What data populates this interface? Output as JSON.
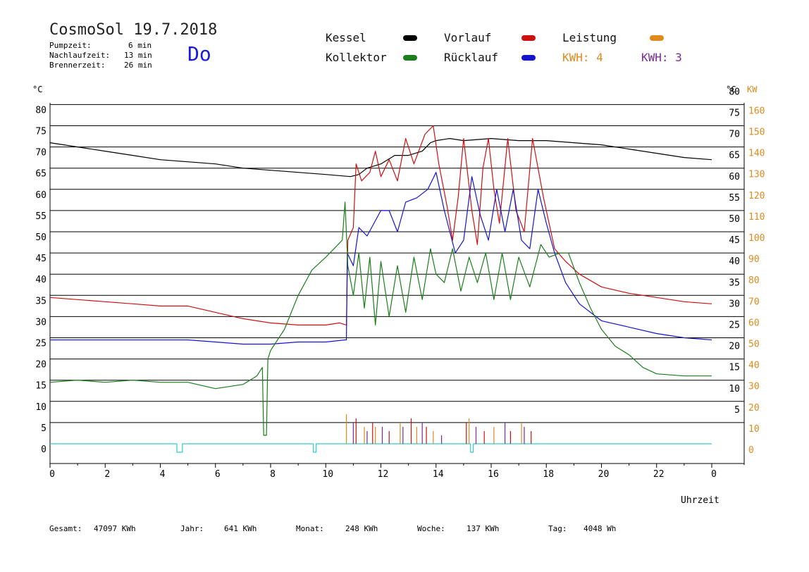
{
  "header": {
    "title": "CosmoSol 19.7.2018",
    "pump_label": "Pumpzeit:",
    "pump_value": "6 min",
    "after_label": "Nachlaufzeit:",
    "after_value": "13 min",
    "burner_label": "Brennerzeit:",
    "burner_value": "26 min",
    "day": "Do"
  },
  "legend": {
    "kessel": "Kessel",
    "vorlauf": "Vorlauf",
    "leistung": "Leistung",
    "kollektor": "Kollektor",
    "ruecklauf": "Rücklauf",
    "kwh_orange": "KWH: 4",
    "kwh_purple": "KWH: 3"
  },
  "colors": {
    "kessel": "#000000",
    "vorlauf": "#cc1111",
    "leistung": "#e08a1c",
    "kollektor": "#1a7f1a",
    "ruecklauf": "#1414cc",
    "pump": "#33cccc",
    "purple": "#7a2a9a"
  },
  "axes": {
    "left_unit": "°C",
    "right_unit": "°C",
    "right_unit2": "KW",
    "xlabel": "Uhrzeit"
  },
  "footer": {
    "total_label": "Gesamt:",
    "total_value": "47097 KWh",
    "year_label": "Jahr:",
    "year_value": "641 KWh",
    "month_label": "Monat:",
    "month_value": "248 KWh",
    "week_label": "Woche:",
    "week_value": "137 KWh",
    "day_label": "Tag:",
    "day_value": "4048 Wh"
  },
  "chart_data": {
    "type": "line",
    "title": "CosmoSol 19.7.2018",
    "xlabel": "Uhrzeit",
    "xlim": [
      0,
      24
    ],
    "ylim": [
      -5,
      82
    ],
    "x_ticks": [
      "0",
      "2",
      "4",
      "6",
      "8",
      "10",
      "12",
      "14",
      "16",
      "18",
      "20",
      "22",
      "0"
    ],
    "y_ticks_left": [
      "0",
      "5",
      "10",
      "15",
      "20",
      "25",
      "30",
      "35",
      "40",
      "45",
      "50",
      "55",
      "60",
      "65",
      "70",
      "75",
      "80"
    ],
    "y_ticks_right_c": [
      "5",
      "10",
      "15",
      "20",
      "25",
      "30",
      "35",
      "40",
      "45",
      "50",
      "55",
      "60",
      "65",
      "70",
      "75",
      "80"
    ],
    "y_ticks_right_kw": [
      "0",
      "10",
      "20",
      "30",
      "40",
      "50",
      "60",
      "70",
      "80",
      "90",
      "100",
      "110",
      "120",
      "130",
      "140",
      "150",
      "160"
    ],
    "grid": true,
    "series": [
      {
        "name": "Kessel",
        "color": "#000000",
        "points": [
          [
            0,
            71
          ],
          [
            1,
            70
          ],
          [
            2,
            69
          ],
          [
            3,
            68
          ],
          [
            4,
            67
          ],
          [
            5,
            66.5
          ],
          [
            6,
            66
          ],
          [
            7,
            65
          ],
          [
            8,
            64.5
          ],
          [
            9,
            64
          ],
          [
            10,
            63.5
          ],
          [
            10.9,
            63
          ],
          [
            11.2,
            63.5
          ],
          [
            11.5,
            65
          ],
          [
            12,
            66
          ],
          [
            12.5,
            68
          ],
          [
            13,
            68
          ],
          [
            13.5,
            69
          ],
          [
            13.8,
            71
          ],
          [
            14,
            71.5
          ],
          [
            14.5,
            72
          ],
          [
            15,
            71.5
          ],
          [
            16,
            72
          ],
          [
            17,
            71.5
          ],
          [
            18,
            71.5
          ],
          [
            19,
            71
          ],
          [
            20,
            70.5
          ],
          [
            21,
            69.5
          ],
          [
            22,
            68.5
          ],
          [
            23,
            67.5
          ],
          [
            24,
            67
          ]
        ]
      },
      {
        "name": "Vorlauf",
        "color": "#cc1111",
        "points": [
          [
            0,
            34.5
          ],
          [
            1,
            34
          ],
          [
            2,
            33.5
          ],
          [
            3,
            33
          ],
          [
            4,
            32.5
          ],
          [
            5,
            32.5
          ],
          [
            6,
            31
          ],
          [
            7,
            29.5
          ],
          [
            8,
            28.5
          ],
          [
            9,
            28
          ],
          [
            9.5,
            28
          ],
          [
            10,
            28
          ],
          [
            10.5,
            28.5
          ],
          [
            10.75,
            28
          ],
          [
            10.8,
            48
          ],
          [
            11,
            51
          ],
          [
            11.1,
            66
          ],
          [
            11.3,
            62
          ],
          [
            11.6,
            64
          ],
          [
            11.8,
            69
          ],
          [
            12,
            63
          ],
          [
            12.3,
            67
          ],
          [
            12.6,
            62
          ],
          [
            12.9,
            72
          ],
          [
            13.2,
            66
          ],
          [
            13.6,
            73
          ],
          [
            13.9,
            75
          ],
          [
            14.1,
            66
          ],
          [
            14.4,
            56
          ],
          [
            14.6,
            48
          ],
          [
            14.8,
            58
          ],
          [
            15,
            72
          ],
          [
            15.3,
            55
          ],
          [
            15.5,
            47
          ],
          [
            15.7,
            65
          ],
          [
            15.9,
            72
          ],
          [
            16.1,
            60
          ],
          [
            16.3,
            52
          ],
          [
            16.6,
            72
          ],
          [
            16.9,
            55
          ],
          [
            17.2,
            50
          ],
          [
            17.5,
            72
          ],
          [
            17.9,
            58
          ],
          [
            18.3,
            46
          ],
          [
            18.7,
            43
          ],
          [
            19.2,
            40
          ],
          [
            20,
            37
          ],
          [
            21,
            35.5
          ],
          [
            22,
            34.5
          ],
          [
            23,
            33.5
          ],
          [
            24,
            33
          ]
        ]
      },
      {
        "name": "Rücklauf",
        "color": "#1414cc",
        "points": [
          [
            0,
            24.5
          ],
          [
            2,
            24.5
          ],
          [
            4,
            24.5
          ],
          [
            5,
            24.5
          ],
          [
            6,
            24
          ],
          [
            7,
            23.5
          ],
          [
            8,
            23.5
          ],
          [
            9,
            24
          ],
          [
            10,
            24
          ],
          [
            10.7,
            24.5
          ],
          [
            10.75,
            24.5
          ],
          [
            10.78,
            45
          ],
          [
            11,
            42
          ],
          [
            11.2,
            51
          ],
          [
            11.5,
            49
          ],
          [
            12,
            55
          ],
          [
            12.3,
            55
          ],
          [
            12.6,
            50
          ],
          [
            12.9,
            57
          ],
          [
            13.3,
            58
          ],
          [
            13.7,
            60
          ],
          [
            14,
            64
          ],
          [
            14.3,
            55
          ],
          [
            14.7,
            45
          ],
          [
            15,
            48
          ],
          [
            15.3,
            63
          ],
          [
            15.6,
            54
          ],
          [
            15.9,
            48
          ],
          [
            16.2,
            60
          ],
          [
            16.5,
            50
          ],
          [
            16.8,
            60
          ],
          [
            17.1,
            48
          ],
          [
            17.4,
            46
          ],
          [
            17.7,
            60
          ],
          [
            18,
            52
          ],
          [
            18.3,
            45
          ],
          [
            18.7,
            38
          ],
          [
            19.2,
            33
          ],
          [
            20,
            29
          ],
          [
            21,
            27.5
          ],
          [
            22,
            26
          ],
          [
            23,
            25
          ],
          [
            24,
            24.5
          ]
        ]
      },
      {
        "name": "Kollektor",
        "color": "#1a7f1a",
        "points": [
          [
            0,
            14.5
          ],
          [
            1,
            15
          ],
          [
            2,
            14.5
          ],
          [
            3,
            15
          ],
          [
            4,
            14.5
          ],
          [
            5,
            14.5
          ],
          [
            6,
            13
          ],
          [
            7,
            14
          ],
          [
            7.5,
            16
          ],
          [
            7.7,
            18
          ],
          [
            7.75,
            2
          ],
          [
            7.85,
            2
          ],
          [
            7.9,
            20
          ],
          [
            8,
            22
          ],
          [
            8.5,
            27
          ],
          [
            9,
            35
          ],
          [
            9.5,
            41
          ],
          [
            10,
            44
          ],
          [
            10.3,
            46
          ],
          [
            10.6,
            48
          ],
          [
            10.7,
            57
          ],
          [
            10.8,
            42
          ],
          [
            11,
            35
          ],
          [
            11.2,
            45
          ],
          [
            11.4,
            32
          ],
          [
            11.6,
            44
          ],
          [
            11.8,
            28
          ],
          [
            12,
            43
          ],
          [
            12.3,
            30
          ],
          [
            12.6,
            42
          ],
          [
            12.9,
            31
          ],
          [
            13.2,
            44
          ],
          [
            13.5,
            34
          ],
          [
            13.8,
            46
          ],
          [
            14,
            40
          ],
          [
            14.3,
            38
          ],
          [
            14.6,
            46
          ],
          [
            14.9,
            36
          ],
          [
            15.2,
            44
          ],
          [
            15.5,
            38
          ],
          [
            15.8,
            45
          ],
          [
            16.1,
            34
          ],
          [
            16.4,
            45
          ],
          [
            16.7,
            34
          ],
          [
            17,
            44
          ],
          [
            17.4,
            37
          ],
          [
            17.8,
            47
          ],
          [
            18.1,
            44
          ],
          [
            18.5,
            45
          ],
          [
            18.8,
            45
          ],
          [
            19.2,
            38
          ],
          [
            19.6,
            32
          ],
          [
            20,
            27
          ],
          [
            20.5,
            23
          ],
          [
            21,
            21
          ],
          [
            21.5,
            18
          ],
          [
            22,
            16.5
          ],
          [
            23,
            16
          ],
          [
            24,
            16
          ]
        ]
      },
      {
        "name": "Pumpe",
        "color": "#33cccc",
        "points": [
          [
            0,
            0
          ],
          [
            4.6,
            0
          ],
          [
            4.6,
            -2
          ],
          [
            4.8,
            -2
          ],
          [
            4.8,
            0
          ],
          [
            9.55,
            0
          ],
          [
            9.55,
            -2
          ],
          [
            9.65,
            -2
          ],
          [
            9.65,
            0
          ],
          [
            15.25,
            0
          ],
          [
            15.25,
            -2
          ],
          [
            15.35,
            -2
          ],
          [
            15.35,
            0
          ],
          [
            24,
            0
          ]
        ]
      }
    ]
  }
}
